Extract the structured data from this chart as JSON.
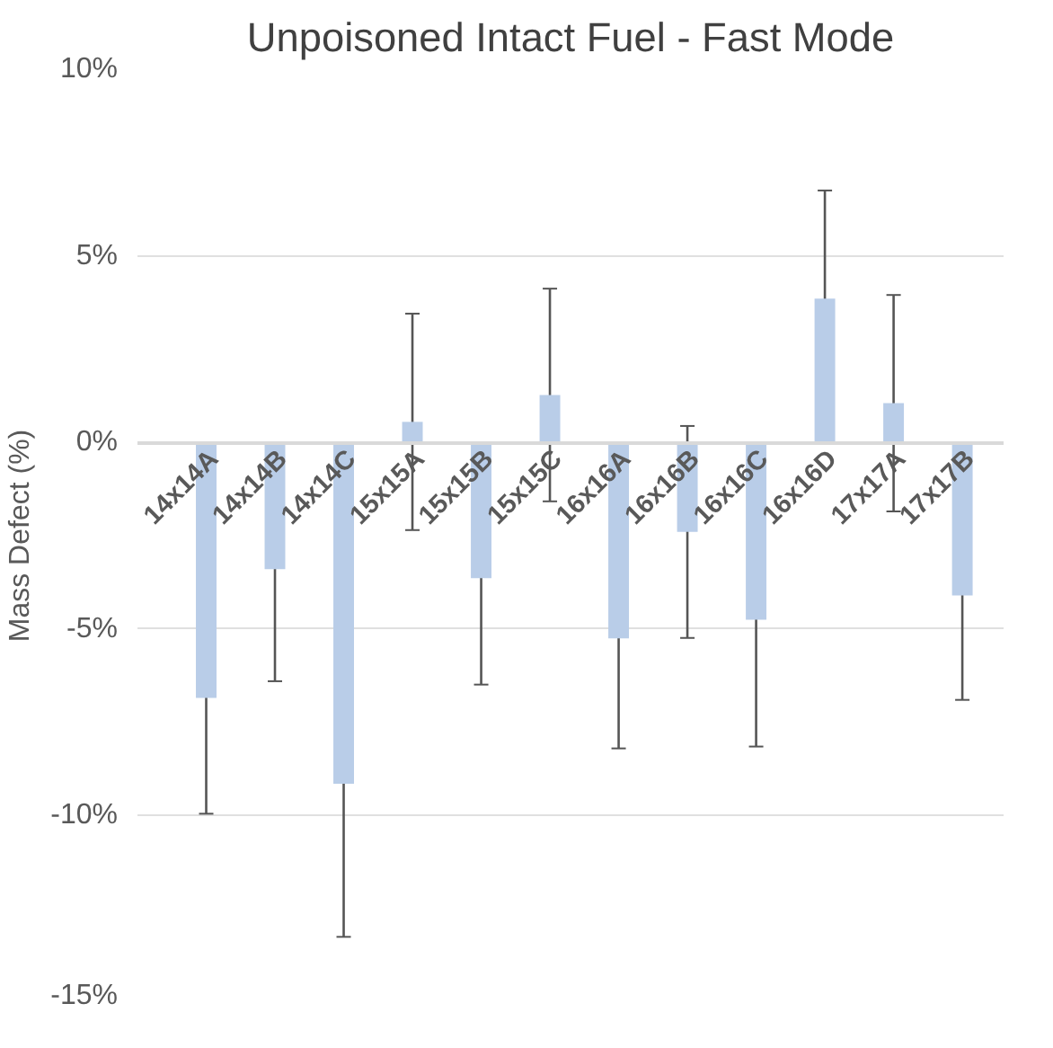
{
  "chart_data": {
    "type": "bar",
    "title": "Unpoisoned Intact Fuel - Fast Mode",
    "ylabel": "Mass Defect (%)",
    "categories": [
      "14x14A",
      "14x14B",
      "14x14C",
      "15x15A",
      "15x15B",
      "15x15C",
      "16x16A",
      "16x16B",
      "16x16C",
      "16x16D",
      "17x17A",
      "17x17B"
    ],
    "values": [
      -6.85,
      -3.4,
      -9.15,
      0.55,
      -3.64,
      1.27,
      -5.25,
      -2.4,
      -4.75,
      3.85,
      1.05,
      -4.1
    ],
    "errors": [
      3.1,
      3.0,
      4.1,
      2.9,
      2.85,
      2.85,
      2.95,
      2.84,
      3.4,
      2.9,
      2.9,
      2.8
    ],
    "color": "#b9cde8",
    "ylim": [
      -15,
      10
    ],
    "yticks": [
      {
        "value": -15,
        "label": "-15%"
      },
      {
        "value": -10,
        "label": "-10%"
      },
      {
        "value": -5,
        "label": "-5%"
      },
      {
        "value": 0,
        "label": "0%"
      },
      {
        "value": 5,
        "label": "5%"
      },
      {
        "value": 10,
        "label": "10%"
      }
    ],
    "grid": "y"
  }
}
